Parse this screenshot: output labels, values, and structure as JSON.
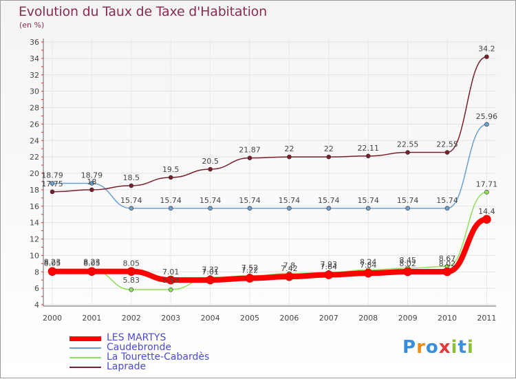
{
  "chart_data": {
    "type": "line",
    "title": "Evolution du Taux de Taxe d'Habitation",
    "subtitle": "(en %)",
    "categories": [
      "2000",
      "2001",
      "2002",
      "2003",
      "2004",
      "2005",
      "2006",
      "2007",
      "2008",
      "2009",
      "2010",
      "2011"
    ],
    "ylim": [
      4,
      36
    ],
    "yticks": [
      4,
      6,
      8,
      10,
      12,
      14,
      16,
      18,
      20,
      22,
      24,
      26,
      28,
      30,
      32,
      34,
      36
    ],
    "grid": true,
    "legend_position": "bottom-left",
    "series": [
      {
        "name": "LES MARTYS",
        "color": "#ff0000",
        "values": [
          8.05,
          8.05,
          8.05,
          7.01,
          7.01,
          7.22,
          7.42,
          7.64,
          7.84,
          8.02,
          8.02,
          14.4
        ]
      },
      {
        "name": "Caudebronde",
        "color": "#6a9fd0",
        "values": [
          18.79,
          18.79,
          15.74,
          15.74,
          15.74,
          15.74,
          15.74,
          15.74,
          15.74,
          15.74,
          15.74,
          25.96
        ]
      },
      {
        "name": "La Tourette-Cabardès",
        "color": "#8fe05a",
        "values": [
          8.23,
          8.23,
          5.83,
          5.83,
          7.32,
          7.52,
          7.8,
          7.93,
          8.24,
          8.45,
          8.67,
          17.71
        ]
      },
      {
        "name": "Laprade",
        "color": "#7a1f2a",
        "values": [
          17.75,
          18.0,
          18.5,
          19.5,
          20.5,
          21.87,
          22.0,
          22.0,
          22.11,
          22.55,
          22.55,
          34.2
        ]
      }
    ],
    "data_labels": [
      [
        "8.05",
        "8.05",
        "8.05",
        "7.01",
        "7.01",
        "7.22",
        "7.42",
        "7.64",
        "7.84",
        "8.02",
        "8.02",
        "14.4"
      ],
      [
        "18.79",
        "18.79",
        "15.74",
        "15.74",
        "15.74",
        "15.74",
        "15.74",
        "15.74",
        "15.74",
        "15.74",
        "15.74",
        "25.96"
      ],
      [
        "8.23",
        "8.23",
        "5.83",
        "5.83",
        "7.32",
        "7.52",
        "7.8",
        "7.93",
        "8.24",
        "8.45",
        "8.67",
        "17.71"
      ],
      [
        "17.75",
        "18",
        "18.5",
        "19.5",
        "20.5",
        "21.87",
        "22",
        "22",
        "22.11",
        "22.55",
        "22.55",
        "34.2"
      ]
    ]
  },
  "logo": {
    "text": "Proxiti"
  }
}
